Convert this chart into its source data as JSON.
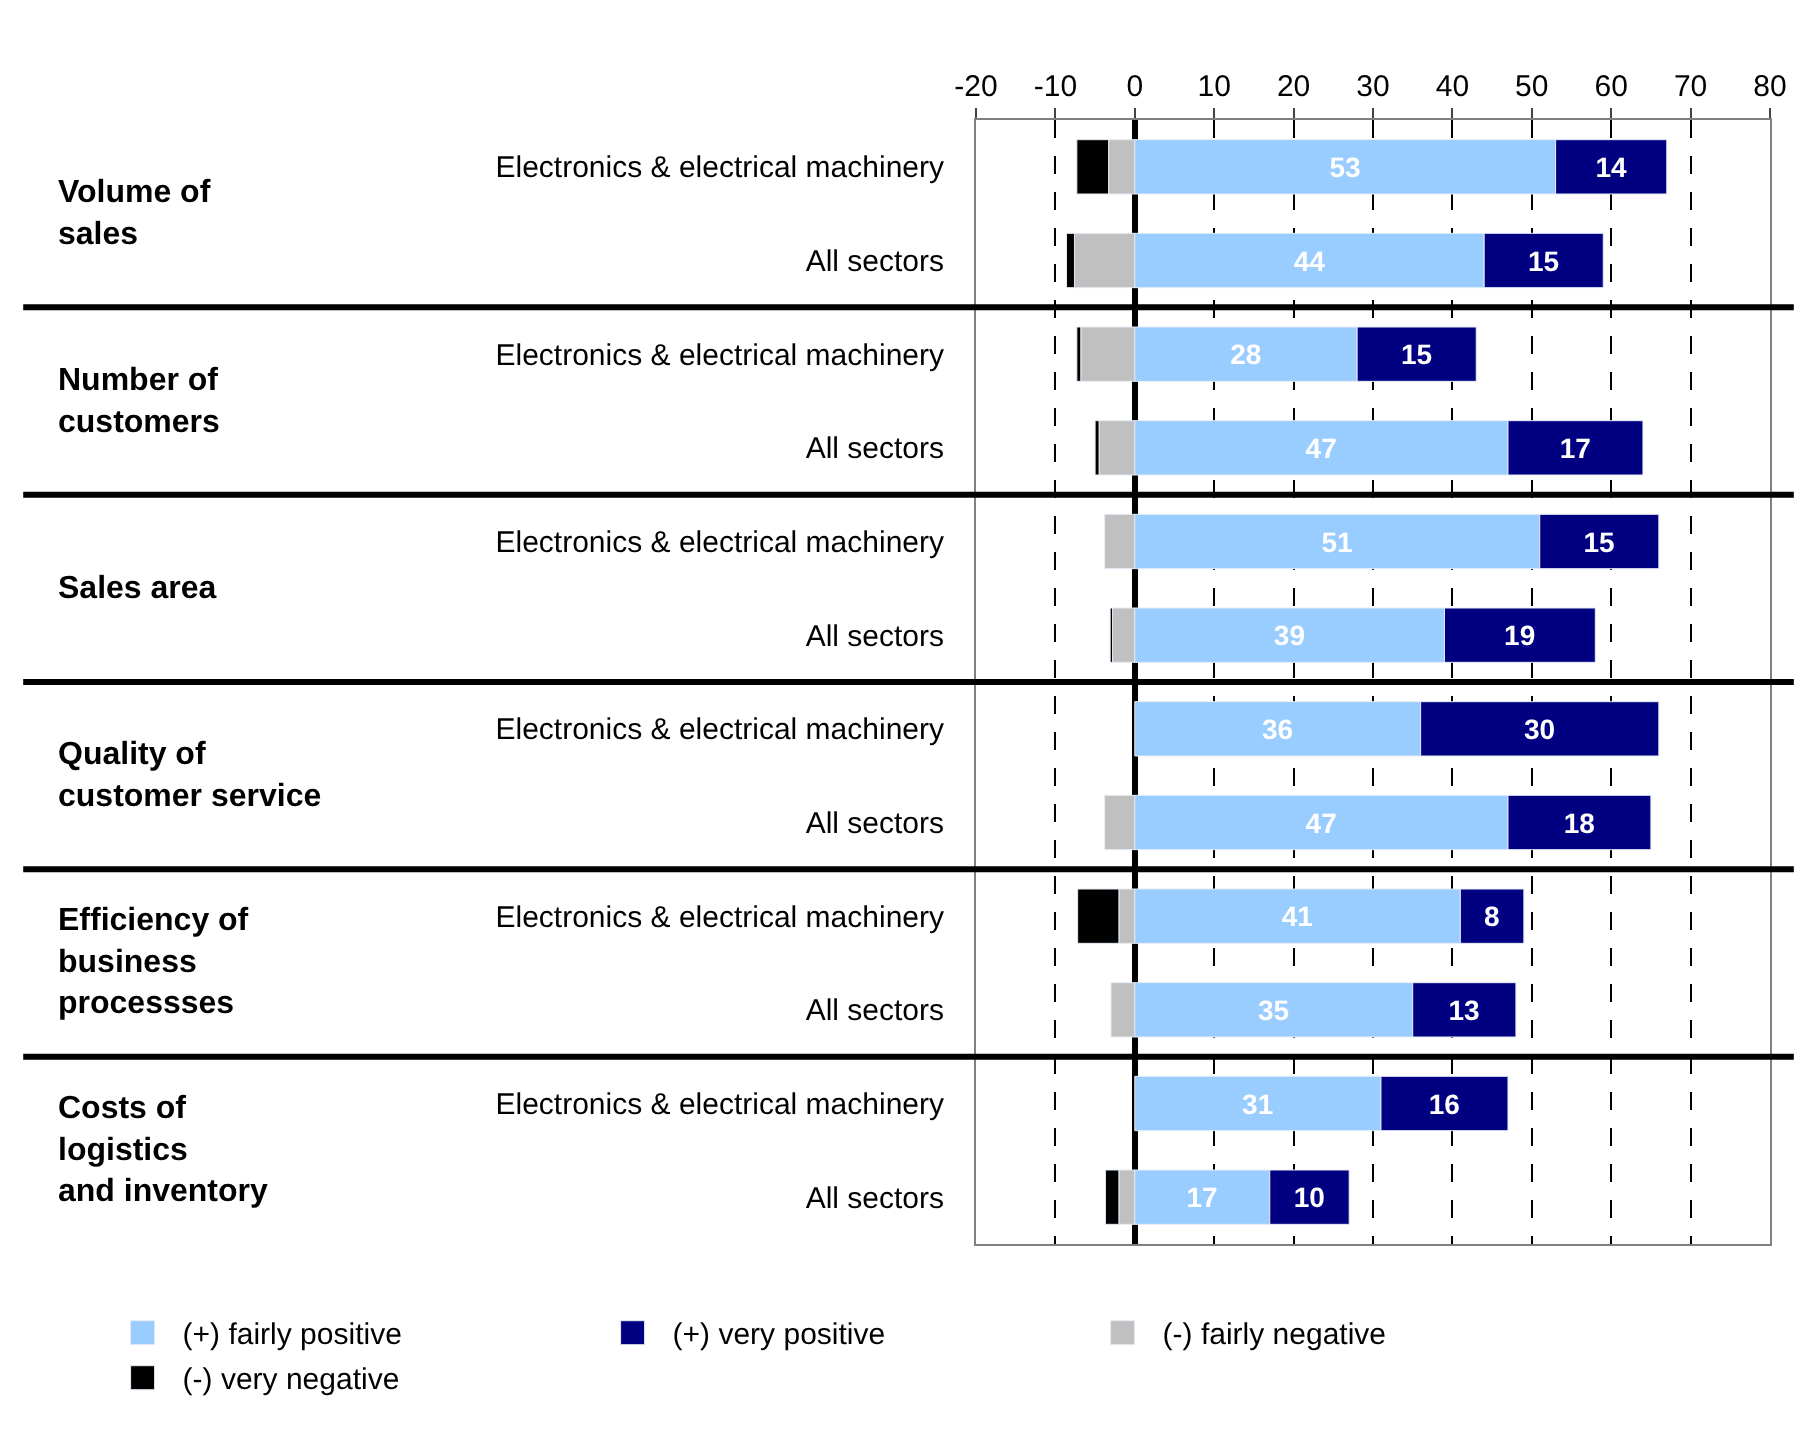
{
  "chart_data": {
    "type": "bar",
    "orientation": "horizontal",
    "stacked": true,
    "categories": [
      "Electronics & electrical machinery",
      "All sectors",
      "Electronics & electrical machinery",
      "All sectors",
      "Electronics & electrical machinery",
      "All sectors",
      "Electronics & electrical machinery",
      "All sectors",
      "Electronics & electrical machinery",
      "All sectors",
      "Electronics & electrical machinery",
      "All sectors"
    ],
    "series": [
      {
        "name": "(-) fairly negative",
        "color": "#c0c0c0",
        "values": [
          -3.3,
          -7.6,
          -6.8,
          -4.5,
          -3.8,
          -2.8,
          null,
          -3.8,
          -2,
          -3,
          null,
          -2
        ]
      },
      {
        "name": "(-) very negative",
        "color": "#000000",
        "values": [
          -4,
          -1,
          -0.5,
          -0.5,
          null,
          -0.3,
          null,
          null,
          -5.2,
          null,
          null,
          -1.7
        ]
      },
      {
        "name": "(+) fairly positive",
        "color": "#99ccff",
        "values": [
          53,
          44,
          28,
          47,
          51,
          39,
          36,
          47,
          41,
          35,
          31,
          17
        ],
        "value_labels": [
          "53",
          "44",
          "28",
          "47",
          "51",
          "39",
          "36",
          "47",
          "41",
          "35",
          "31",
          "17"
        ]
      },
      {
        "name": "(+) very positive",
        "color": "#000080",
        "values": [
          14,
          15,
          15,
          17,
          15,
          19,
          30,
          18,
          8,
          13,
          16,
          10
        ],
        "value_labels": [
          "14",
          "15",
          "15",
          "17",
          "15",
          "19",
          "30",
          "18",
          "8",
          "13",
          "16",
          "10"
        ]
      }
    ],
    "xlim": [
      -20,
      80
    ],
    "xticks": [
      -20,
      -10,
      0,
      10,
      20,
      30,
      40,
      50,
      60,
      70,
      80
    ],
    "grid": "x",
    "legend": "bottom",
    "annotations": [
      "Volume of\nsales",
      "Number of\ncustomers",
      "Sales area",
      "Quality of\ncustomer service",
      "Efficiency of\nbusiness\nprocessses",
      "Costs of\nlogistics\nand inventory"
    ]
  }
}
